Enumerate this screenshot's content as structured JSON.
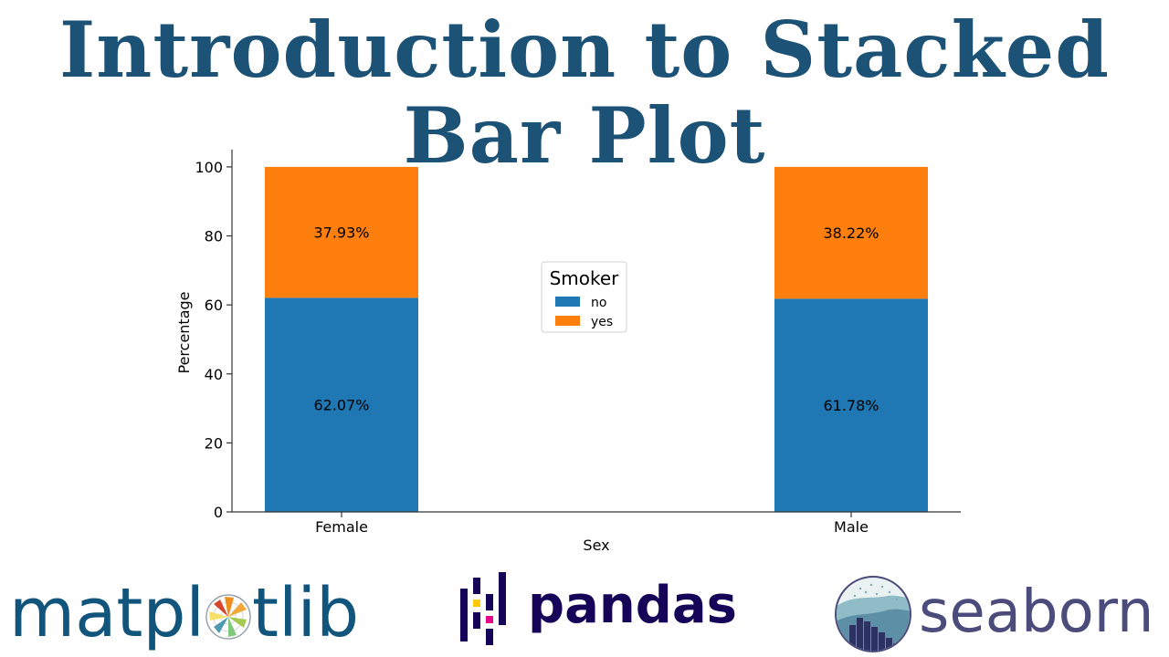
{
  "title": "Introduction to Stacked Bar Plot",
  "chart_data": {
    "type": "bar",
    "stacked": true,
    "categories": [
      "Female",
      "Male"
    ],
    "series": [
      {
        "name": "no",
        "values": [
          62.07,
          61.78
        ],
        "labels": [
          "62.07%",
          "61.78%"
        ],
        "color": "#1f77b4"
      },
      {
        "name": "yes",
        "values": [
          37.93,
          38.22
        ],
        "labels": [
          "37.93%",
          "38.22%"
        ],
        "color": "#ff7f0e"
      }
    ],
    "xlabel": "Sex",
    "ylabel": "Percentage",
    "ylim": [
      0,
      105
    ],
    "yticks": [
      0,
      20,
      40,
      60,
      80,
      100
    ],
    "legend": {
      "title": "Smoker",
      "placement": "center"
    },
    "grid": false
  },
  "logos": {
    "matplotlib_left": "matpl",
    "matplotlib_right": "tlib",
    "pandas": "pandas",
    "seaborn": "seaborn"
  },
  "colors": {
    "title": "#1b5276",
    "matplotlib": "#11557c",
    "pandas": "#150458",
    "pandas_yellow": "#ffca00",
    "pandas_pink": "#e70488",
    "seaborn": "#4c4c7c"
  }
}
